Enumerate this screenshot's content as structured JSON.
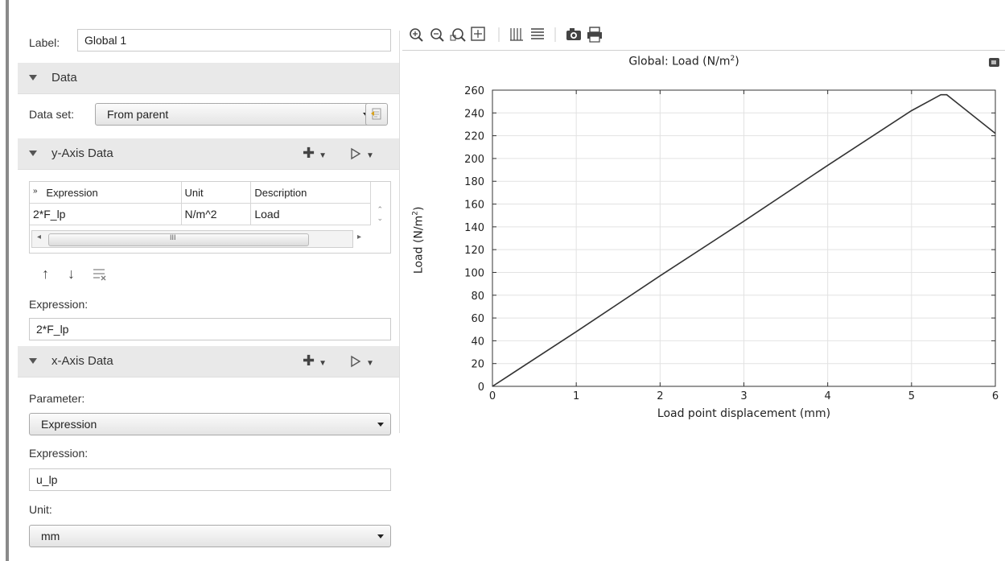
{
  "settings": {
    "label_caption": "Label:",
    "label_value": "Global 1",
    "data_section": "Data",
    "data_set_caption": "Data set:",
    "data_set_value": "From parent",
    "y_section": "y-Axis Data",
    "table": {
      "headers": [
        "Expression",
        "Unit",
        "Description"
      ],
      "rows": [
        [
          "2*F_lp",
          "N/m^2",
          "Load"
        ]
      ],
      "scroll_grip": "III"
    },
    "expression_caption": "Expression:",
    "y_expression_value": "2*F_lp",
    "x_section": "x-Axis Data",
    "parameter_caption": "Parameter:",
    "parameter_value": "Expression",
    "x_expression_caption": "Expression:",
    "x_expression_value": "u_lp",
    "unit_caption": "Unit:",
    "unit_value": "mm"
  },
  "graphics": {
    "title_prefix": "Global: Load (N/m",
    "title_sup": "2",
    "title_suffix": ")",
    "toolbar_icons": [
      "zoom-in-icon",
      "zoom-out-icon",
      "zoom-box-icon",
      "zoom-extents-icon",
      "grid-icon",
      "legend-icon",
      "camera-icon",
      "print-icon"
    ]
  },
  "chart_data": {
    "type": "line",
    "title": "Global: Load (N/m²)",
    "xlabel": "Load point displacement (mm)",
    "ylabel": "Load (N/m²)",
    "xlim": [
      0,
      6
    ],
    "ylim": [
      0,
      260
    ],
    "xticks": [
      0,
      1,
      2,
      3,
      4,
      5,
      6
    ],
    "yticks": [
      0,
      20,
      40,
      60,
      80,
      100,
      120,
      140,
      160,
      180,
      200,
      220,
      240,
      260
    ],
    "grid": true,
    "series": [
      {
        "color": "#333333",
        "x": [
          0,
          1,
          2,
          3,
          4,
          5,
          5.35,
          5.42,
          6.0
        ],
        "y": [
          0,
          48,
          97,
          145,
          194,
          242,
          256,
          256,
          222
        ]
      }
    ]
  }
}
